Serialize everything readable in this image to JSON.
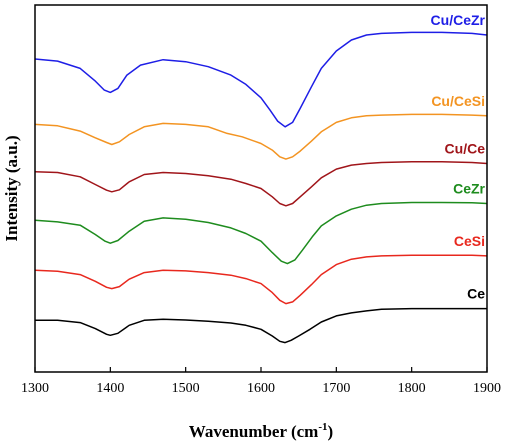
{
  "chart_data": {
    "type": "line",
    "title": "",
    "xlabel": "Wavenumber (cm",
    "xlabel_sup": "-1",
    "xlabel_end": ")",
    "ylabel": "Intensity (a.u.)",
    "xlim": [
      1300,
      1900
    ],
    "xticks": [
      "1300",
      "1400",
      "1500",
      "1600",
      "1700",
      "1800",
      "1900"
    ],
    "y_ticks_shown": false,
    "grid": false,
    "legend": "inline labels at right end of each curve",
    "y_units": "arbitrary, curves vertically offset; values are relative intensity (0 = baseline of lowest curve, 10 = top of axis)",
    "series": [
      {
        "name": "Ce",
        "color": "#000000",
        "x": [
          1300,
          1330,
          1360,
          1380,
          1395,
          1400,
          1410,
          1425,
          1445,
          1470,
          1500,
          1530,
          1560,
          1580,
          1600,
          1615,
          1625,
          1632,
          1640,
          1650,
          1665,
          1680,
          1700,
          1720,
          1740,
          1760,
          1800,
          1840,
          1880,
          1900
        ],
        "y": [
          0.55,
          0.55,
          0.48,
          0.3,
          0.13,
          0.1,
          0.16,
          0.4,
          0.55,
          0.58,
          0.56,
          0.52,
          0.47,
          0.4,
          0.28,
          0.08,
          -0.08,
          -0.12,
          -0.05,
          0.08,
          0.28,
          0.5,
          0.68,
          0.77,
          0.83,
          0.88,
          0.9,
          0.9,
          0.9,
          0.9
        ]
      },
      {
        "name": "CeSi",
        "color": "#e8281e",
        "x": [
          1300,
          1330,
          1360,
          1380,
          1395,
          1402,
          1412,
          1425,
          1445,
          1470,
          1500,
          1530,
          1560,
          1580,
          1600,
          1615,
          1625,
          1633,
          1642,
          1652,
          1667,
          1680,
          1700,
          1720,
          1740,
          1760,
          1800,
          1840,
          1880,
          1900
        ],
        "y": [
          2.05,
          2.02,
          1.92,
          1.72,
          1.54,
          1.5,
          1.56,
          1.78,
          1.98,
          2.05,
          2.03,
          1.98,
          1.9,
          1.8,
          1.65,
          1.38,
          1.15,
          1.05,
          1.1,
          1.3,
          1.62,
          1.92,
          2.22,
          2.38,
          2.45,
          2.48,
          2.5,
          2.5,
          2.5,
          2.48
        ]
      },
      {
        "name": "CeZr",
        "color": "#1e8c1e",
        "x": [
          1300,
          1330,
          1360,
          1380,
          1393,
          1400,
          1410,
          1425,
          1445,
          1470,
          1500,
          1530,
          1560,
          1580,
          1600,
          1615,
          1627,
          1635,
          1645,
          1655,
          1668,
          1680,
          1700,
          1720,
          1740,
          1760,
          1800,
          1840,
          1880,
          1900
        ],
        "y": [
          3.55,
          3.5,
          3.4,
          3.12,
          2.92,
          2.86,
          2.94,
          3.22,
          3.52,
          3.62,
          3.58,
          3.48,
          3.32,
          3.15,
          2.92,
          2.58,
          2.32,
          2.25,
          2.36,
          2.65,
          3.05,
          3.38,
          3.68,
          3.88,
          4.0,
          4.05,
          4.08,
          4.08,
          4.07,
          4.05
        ]
      },
      {
        "name": "Cu/Ce",
        "color": "#a0151a",
        "x": [
          1300,
          1330,
          1360,
          1380,
          1395,
          1402,
          1412,
          1425,
          1445,
          1470,
          1500,
          1530,
          1560,
          1580,
          1600,
          1615,
          1625,
          1633,
          1642,
          1652,
          1667,
          1680,
          1700,
          1720,
          1740,
          1760,
          1800,
          1840,
          1880,
          1900
        ],
        "y": [
          5.0,
          4.98,
          4.85,
          4.62,
          4.45,
          4.4,
          4.46,
          4.7,
          4.92,
          4.98,
          4.95,
          4.88,
          4.78,
          4.65,
          4.5,
          4.25,
          4.05,
          3.98,
          4.05,
          4.25,
          4.55,
          4.82,
          5.08,
          5.2,
          5.25,
          5.28,
          5.3,
          5.3,
          5.28,
          5.25
        ]
      },
      {
        "name": "Cu/CeSi",
        "color": "#f39422",
        "x": [
          1300,
          1330,
          1360,
          1380,
          1395,
          1402,
          1412,
          1425,
          1445,
          1470,
          1500,
          1530,
          1555,
          1575,
          1600,
          1615,
          1625,
          1633,
          1642,
          1652,
          1667,
          1680,
          1700,
          1720,
          1740,
          1760,
          1800,
          1840,
          1880,
          1900
        ],
        "y": [
          6.42,
          6.38,
          6.22,
          6.02,
          5.88,
          5.82,
          5.9,
          6.12,
          6.35,
          6.45,
          6.42,
          6.35,
          6.15,
          6.05,
          5.85,
          5.65,
          5.45,
          5.38,
          5.45,
          5.62,
          5.92,
          6.2,
          6.48,
          6.62,
          6.68,
          6.7,
          6.72,
          6.72,
          6.7,
          6.68
        ]
      },
      {
        "name": "Cu/CeZr",
        "color": "#1e1ee6",
        "x": [
          1300,
          1330,
          1360,
          1380,
          1392,
          1400,
          1410,
          1422,
          1440,
          1470,
          1500,
          1530,
          1560,
          1580,
          1600,
          1612,
          1622,
          1632,
          1642,
          1652,
          1667,
          1680,
          1700,
          1720,
          1740,
          1760,
          1800,
          1840,
          1880,
          1900
        ],
        "y": [
          8.38,
          8.32,
          8.1,
          7.72,
          7.45,
          7.38,
          7.5,
          7.9,
          8.2,
          8.36,
          8.3,
          8.15,
          7.9,
          7.62,
          7.22,
          6.85,
          6.52,
          6.35,
          6.48,
          6.9,
          7.55,
          8.1,
          8.62,
          8.95,
          9.1,
          9.15,
          9.18,
          9.18,
          9.15,
          9.1
        ]
      }
    ]
  }
}
